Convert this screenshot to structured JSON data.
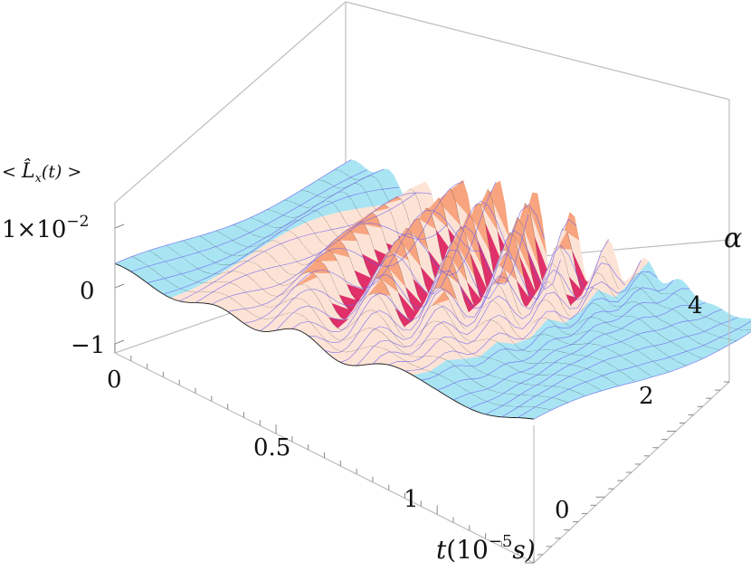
{
  "chart_data": {
    "type": "surface3d",
    "title": "",
    "zlabel": "< L̂x(t) >",
    "xlabel": "t(10^-5 s)",
    "ylabel": "α",
    "xlim": [
      0,
      1.3
    ],
    "ylim": [
      0,
      5.5
    ],
    "zlim": [
      -0.012,
      0.012
    ],
    "x_ticks": [
      "0",
      "0.5",
      "1"
    ],
    "y_ticks": [
      "0",
      "2",
      "4"
    ],
    "z_ticks": [
      "1×10⁻²",
      "0",
      "−1"
    ],
    "surface": {
      "description_values": "oscillating waves along t for each alpha",
      "t": [
        0.0,
        0.1,
        0.2,
        0.3,
        0.4,
        0.5,
        0.6,
        0.7,
        0.8,
        0.9,
        1.0,
        1.1,
        1.2,
        1.3
      ],
      "alpha": [
        0,
        1,
        2,
        3,
        4,
        5
      ],
      "peak_amplitude_at_alpha": [
        0.002,
        0.004,
        0.006,
        0.008,
        0.01,
        0.011
      ],
      "oscillation_center_t": 0.55,
      "min_value": -0.011
    },
    "grid": false
  },
  "labels": {
    "z_axis_prefix": "< ",
    "z_axis_main": "L̂",
    "z_axis_sub": "x",
    "z_axis_suffix": "(t) >",
    "x_axis_main": "t",
    "x_axis_unit": "(10",
    "x_axis_exp": "−5",
    "x_axis_tail": "s)",
    "y_axis": "α",
    "z_top_main": "1×10",
    "z_top_exp": "−2"
  },
  "colors": {
    "positive": "#f7a47f",
    "positive_light": "#fde3d6",
    "negative": "#e0306a",
    "flat": "#a9e4f3",
    "ridge": "#6a5cf0",
    "mesh": "#1a1a1a",
    "box": "#b8b8b8"
  }
}
